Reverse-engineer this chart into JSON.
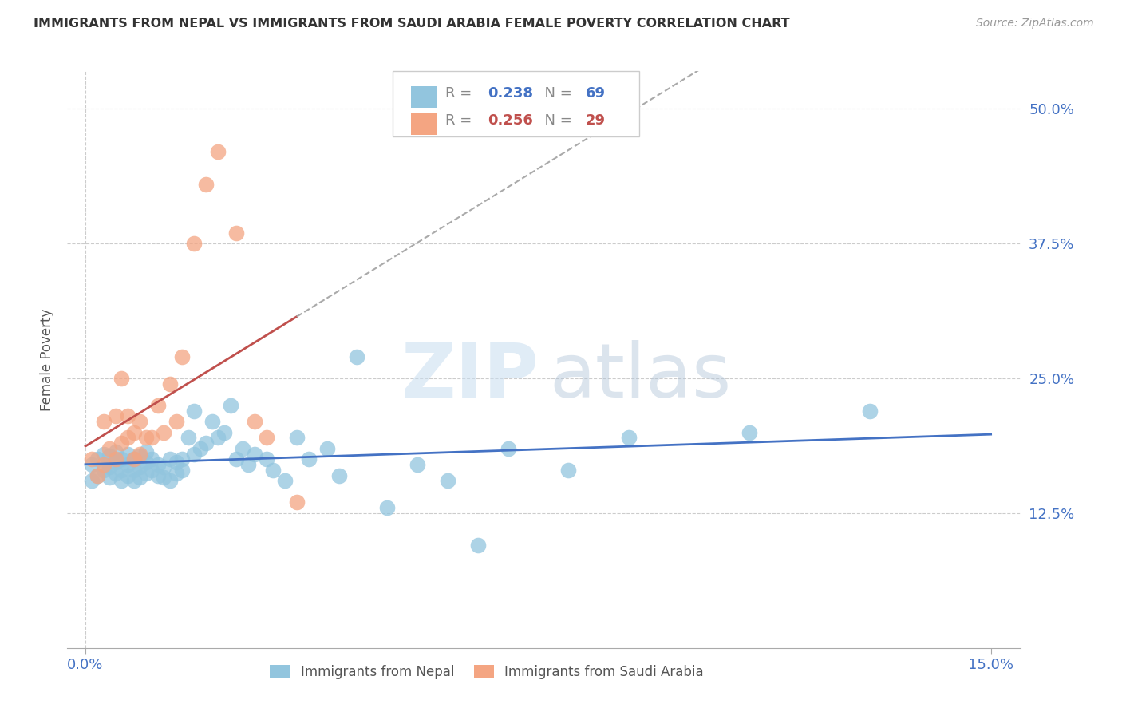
{
  "title": "IMMIGRANTS FROM NEPAL VS IMMIGRANTS FROM SAUDI ARABIA FEMALE POVERTY CORRELATION CHART",
  "source": "Source: ZipAtlas.com",
  "ylabel_label": "Female Poverty",
  "xlim": [
    0.0,
    0.15
  ],
  "ylim": [
    0.0,
    0.52
  ],
  "ytick_vals": [
    0.125,
    0.25,
    0.375,
    0.5
  ],
  "ytick_labels": [
    "12.5%",
    "25.0%",
    "37.5%",
    "50.0%"
  ],
  "xtick_vals": [
    0.0,
    0.15
  ],
  "xtick_labels": [
    "0.0%",
    "15.0%"
  ],
  "nepal_R": 0.238,
  "nepal_N": 69,
  "saudi_R": 0.256,
  "saudi_N": 29,
  "nepal_color": "#92c5de",
  "saudi_color": "#f4a582",
  "nepal_line_color": "#4472c4",
  "saudi_line_color": "#c0504d",
  "background_color": "#ffffff",
  "nepal_x": [
    0.001,
    0.001,
    0.002,
    0.002,
    0.003,
    0.003,
    0.004,
    0.004,
    0.004,
    0.005,
    0.005,
    0.005,
    0.006,
    0.006,
    0.006,
    0.007,
    0.007,
    0.007,
    0.008,
    0.008,
    0.008,
    0.009,
    0.009,
    0.009,
    0.01,
    0.01,
    0.01,
    0.011,
    0.011,
    0.012,
    0.012,
    0.013,
    0.013,
    0.014,
    0.014,
    0.015,
    0.015,
    0.016,
    0.016,
    0.017,
    0.018,
    0.018,
    0.019,
    0.02,
    0.021,
    0.022,
    0.023,
    0.024,
    0.025,
    0.026,
    0.027,
    0.028,
    0.03,
    0.031,
    0.033,
    0.035,
    0.037,
    0.04,
    0.042,
    0.045,
    0.05,
    0.055,
    0.06,
    0.065,
    0.07,
    0.08,
    0.09,
    0.11,
    0.13
  ],
  "nepal_y": [
    0.155,
    0.17,
    0.16,
    0.175,
    0.165,
    0.18,
    0.158,
    0.168,
    0.178,
    0.162,
    0.172,
    0.182,
    0.155,
    0.165,
    0.175,
    0.16,
    0.17,
    0.18,
    0.155,
    0.165,
    0.175,
    0.158,
    0.168,
    0.178,
    0.162,
    0.172,
    0.182,
    0.165,
    0.175,
    0.16,
    0.17,
    0.158,
    0.168,
    0.155,
    0.175,
    0.162,
    0.172,
    0.165,
    0.175,
    0.195,
    0.18,
    0.22,
    0.185,
    0.19,
    0.21,
    0.195,
    0.2,
    0.225,
    0.175,
    0.185,
    0.17,
    0.18,
    0.175,
    0.165,
    0.155,
    0.195,
    0.175,
    0.185,
    0.16,
    0.27,
    0.13,
    0.17,
    0.155,
    0.095,
    0.185,
    0.165,
    0.195,
    0.2,
    0.22
  ],
  "saudi_x": [
    0.001,
    0.002,
    0.003,
    0.003,
    0.004,
    0.005,
    0.005,
    0.006,
    0.006,
    0.007,
    0.007,
    0.008,
    0.008,
    0.009,
    0.009,
    0.01,
    0.011,
    0.012,
    0.013,
    0.014,
    0.015,
    0.016,
    0.018,
    0.02,
    0.022,
    0.025,
    0.028,
    0.03,
    0.035
  ],
  "saudi_y": [
    0.175,
    0.16,
    0.17,
    0.21,
    0.185,
    0.175,
    0.215,
    0.19,
    0.25,
    0.195,
    0.215,
    0.175,
    0.2,
    0.18,
    0.21,
    0.195,
    0.195,
    0.225,
    0.2,
    0.245,
    0.21,
    0.27,
    0.375,
    0.43,
    0.46,
    0.385,
    0.21,
    0.195,
    0.135
  ]
}
